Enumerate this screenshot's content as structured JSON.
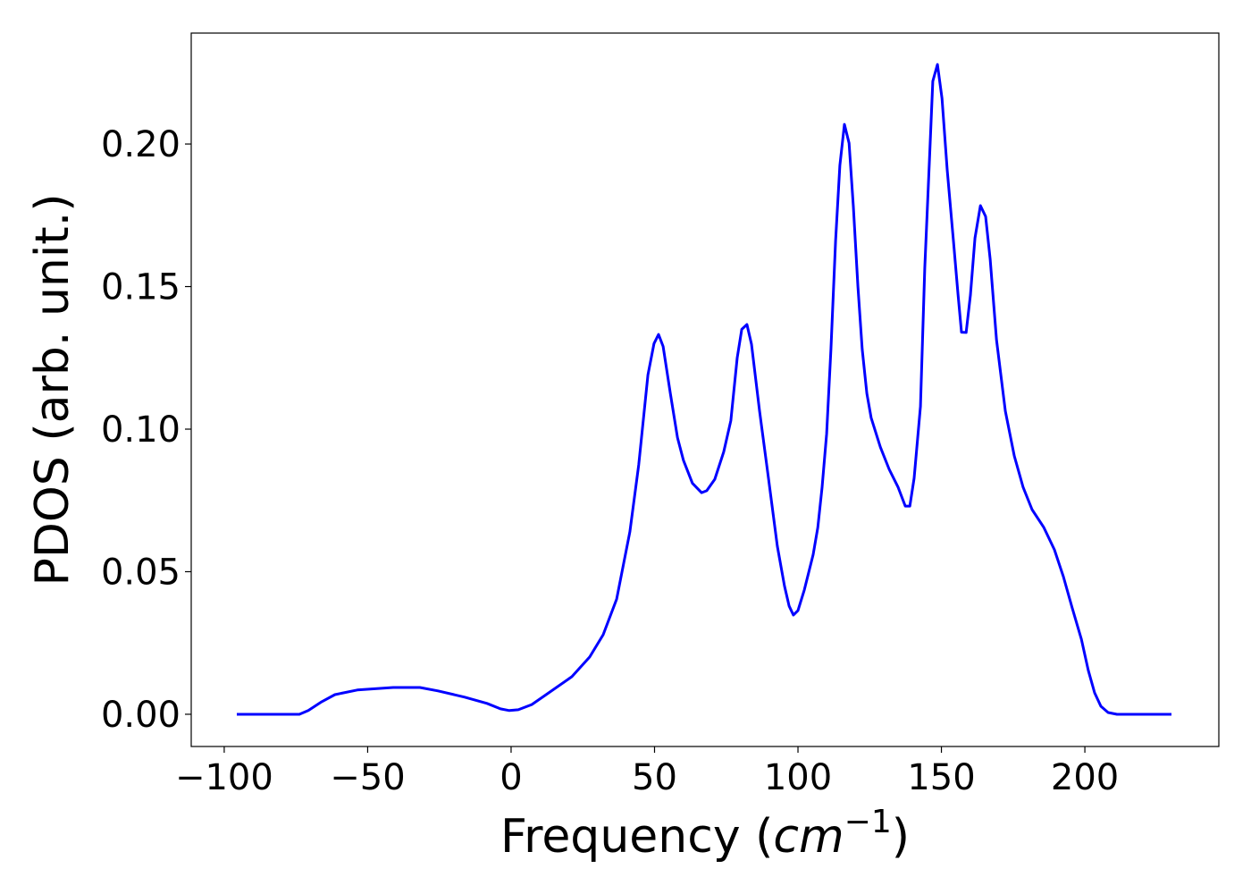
{
  "chart_data": {
    "type": "line",
    "title": "",
    "xlabel": "Frequency (cm^-1)",
    "xlabel_parts": {
      "prefix": "Frequency (",
      "unit": "cm",
      "exp": "−1",
      "suffix": ")"
    },
    "ylabel": "PDOS (arb. unit.)",
    "xlim": [
      -111.5,
      246.7
    ],
    "ylim": [
      -0.0113,
      0.2389
    ],
    "xticks": [
      -100,
      -50,
      0,
      50,
      100,
      150,
      200
    ],
    "xtick_labels": [
      "−100",
      "−50",
      "0",
      "50",
      "100",
      "150",
      "200"
    ],
    "yticks": [
      0.0,
      0.05,
      0.1,
      0.15,
      0.2
    ],
    "ytick_labels": [
      "0.00",
      "0.05",
      "0.10",
      "0.15",
      "0.20"
    ],
    "grid": false,
    "series": [
      {
        "name": "PDOS",
        "color": "#0000ff",
        "x": [
          -95.6,
          -73.8,
          -70.7,
          -66,
          -61.4,
          -53.6,
          -41.1,
          -31.8,
          -25.5,
          -16.2,
          -8.4,
          -3.7,
          -0.6,
          2.5,
          7.2,
          11.8,
          21.2,
          27.4,
          32.1,
          36.8,
          41.4,
          44.5,
          47.7,
          49.8,
          51.4,
          53,
          55.5,
          58,
          60.1,
          63.2,
          66.4,
          68.2,
          71,
          74.1,
          76.6,
          78.8,
          80.4,
          82.2,
          83.8,
          86.6,
          89.7,
          92.8,
          95.3,
          96.9,
          98.4,
          100,
          102.2,
          105.3,
          106.9,
          108.4,
          110,
          111.5,
          113.1,
          114.6,
          116.2,
          117.8,
          119.3,
          120.9,
          122.4,
          124,
          125.5,
          128.7,
          131.8,
          134.9,
          137.4,
          139,
          140.5,
          142.7,
          144.2,
          145.8,
          147,
          148.6,
          150.2,
          152,
          154.2,
          155.8,
          157,
          158.6,
          160.1,
          161.7,
          163.6,
          165.4,
          167,
          169.2,
          172.3,
          175.4,
          178.5,
          181.6,
          185.7,
          189.4,
          192.5,
          195.6,
          198.8,
          201.2,
          203.4,
          205.6,
          208.1,
          211.2,
          230.2
        ],
        "y": [
          0,
          0,
          0.0013,
          0.0044,
          0.0069,
          0.0085,
          0.0094,
          0.0094,
          0.0082,
          0.006,
          0.0038,
          0.0019,
          0.0013,
          0.0016,
          0.0034,
          0.0066,
          0.0132,
          0.0201,
          0.0279,
          0.0404,
          0.064,
          0.0875,
          0.119,
          0.13,
          0.1332,
          0.129,
          0.1125,
          0.097,
          0.089,
          0.081,
          0.0777,
          0.0784,
          0.0824,
          0.092,
          0.103,
          0.125,
          0.135,
          0.1367,
          0.1298,
          0.1064,
          0.0828,
          0.059,
          0.045,
          0.038,
          0.0348,
          0.0364,
          0.0436,
          0.056,
          0.0655,
          0.0796,
          0.0984,
          0.128,
          0.166,
          0.1925,
          0.2069,
          0.2003,
          0.178,
          0.15,
          0.128,
          0.1125,
          0.104,
          0.0937,
          0.0859,
          0.0796,
          0.073,
          0.073,
          0.0828,
          0.108,
          0.1564,
          0.194,
          0.222,
          0.2279,
          0.216,
          0.191,
          0.166,
          0.147,
          0.134,
          0.1339,
          0.147,
          0.167,
          0.1784,
          0.1746,
          0.1596,
          0.1313,
          0.1063,
          0.0906,
          0.0796,
          0.0718,
          0.0655,
          0.0577,
          0.0483,
          0.0373,
          0.0263,
          0.0154,
          0.0075,
          0.0028,
          0.0006,
          0,
          0
        ]
      }
    ]
  }
}
